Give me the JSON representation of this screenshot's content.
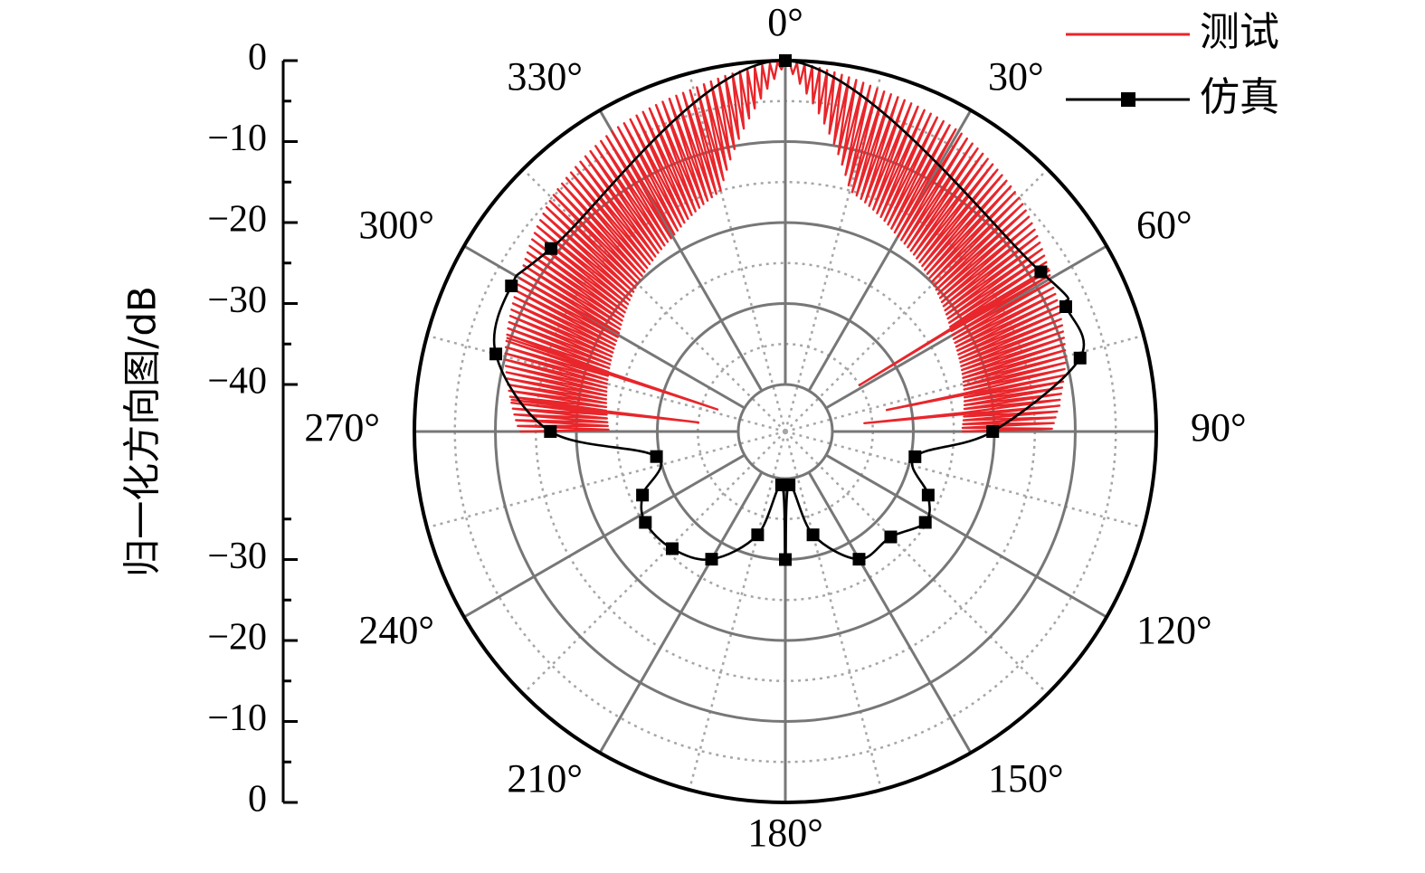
{
  "chart_data": {
    "type": "polar-line",
    "title": "",
    "radial_axis": {
      "label": "归一化方向图/dB",
      "range": [
        -40,
        0
      ],
      "ticks": [
        0,
        -10,
        -20,
        -30,
        -40,
        -30,
        -20,
        -10,
        0
      ],
      "tick_labels": [
        "0",
        "−10",
        "−20",
        "−30",
        "−40",
        "−30",
        "−20",
        "−10",
        "0"
      ],
      "rings": [
        0,
        -10,
        -20,
        -30,
        -40
      ],
      "minor_rings": [
        -5,
        -15,
        -25,
        -35
      ]
    },
    "angular_axis": {
      "direction": "clockwise",
      "zero": "top",
      "ticks_deg": [
        0,
        30,
        60,
        90,
        120,
        150,
        180,
        210,
        240,
        270,
        300,
        330
      ],
      "tick_labels": [
        "0°",
        "30°",
        "60°",
        "90°",
        "120°",
        "150°",
        "180°",
        "210°",
        "240°",
        "270°",
        "300°",
        "330°"
      ],
      "minor_step_deg": 15
    },
    "legend": {
      "position": "top-right",
      "entries": [
        {
          "label": "测试",
          "color": "#e8262b",
          "marker": "none"
        },
        {
          "label": "仿真",
          "color": "#000000",
          "marker": "square"
        }
      ]
    },
    "series": [
      {
        "name": "仿真",
        "color": "#000000",
        "marker": "square",
        "points": [
          {
            "theta": 0,
            "r": 0
          },
          {
            "theta": 58,
            "r": -8.6
          },
          {
            "theta": 66,
            "r": -7.9
          },
          {
            "theta": 76,
            "r": -8.3
          },
          {
            "theta": 90,
            "r": -20.2
          },
          {
            "theta": 101,
            "r": -29.5
          },
          {
            "theta": 114,
            "r": -26.5
          },
          {
            "theta": 123,
            "r": -25.2
          },
          {
            "theta": 135,
            "r": -27.4
          },
          {
            "theta": 150,
            "r": -27.6
          },
          {
            "theta": 165,
            "r": -32.6
          },
          {
            "theta": 176,
            "r": -39.2
          },
          {
            "theta": 180,
            "r": -30
          },
          {
            "theta": 184,
            "r": -39.2
          },
          {
            "theta": 195,
            "r": -32.6
          },
          {
            "theta": 210,
            "r": -27.6
          },
          {
            "theta": 224,
            "r": -25.7
          },
          {
            "theta": 237,
            "r": -25.2
          },
          {
            "theta": 246,
            "r": -26.5
          },
          {
            "theta": 259,
            "r": -29.6
          },
          {
            "theta": 270,
            "r": -16.8
          },
          {
            "theta": 285,
            "r": -8.8
          },
          {
            "theta": 298,
            "r": -7.5
          },
          {
            "theta": 308,
            "r": -9.1
          }
        ]
      },
      {
        "name": "测试",
        "color": "#e8262b",
        "marker": "none",
        "profile": [
          {
            "theta": 0,
            "upper": 0,
            "lower": -0.5
          },
          {
            "theta": 15,
            "upper": -2,
            "lower": -15
          },
          {
            "theta": 30,
            "upper": -3,
            "lower": -18
          },
          {
            "theta": 45,
            "upper": -5,
            "lower": -20
          },
          {
            "theta": 60,
            "upper": -8,
            "lower": -22
          },
          {
            "theta": 75,
            "upper": -10,
            "lower": -23
          },
          {
            "theta": 90,
            "upper": -13,
            "lower": -24
          },
          {
            "theta": 270,
            "upper": -13,
            "lower": -24
          },
          {
            "theta": 285,
            "upper": -10,
            "lower": -23
          },
          {
            "theta": 300,
            "upper": -8,
            "lower": -22
          },
          {
            "theta": 315,
            "upper": -5,
            "lower": -20
          },
          {
            "theta": 330,
            "upper": -3,
            "lower": -18
          },
          {
            "theta": 345,
            "upper": -2,
            "lower": -15
          },
          {
            "theta": 360,
            "upper": 0,
            "lower": -0.5
          }
        ],
        "spikes": [
          {
            "theta": 58,
            "r": -35
          },
          {
            "theta": 78,
            "r": -33
          },
          {
            "theta": 84,
            "r": -36
          },
          {
            "theta": 276,
            "r": -35
          },
          {
            "theta": 288,
            "r": -37
          }
        ]
      }
    ]
  }
}
